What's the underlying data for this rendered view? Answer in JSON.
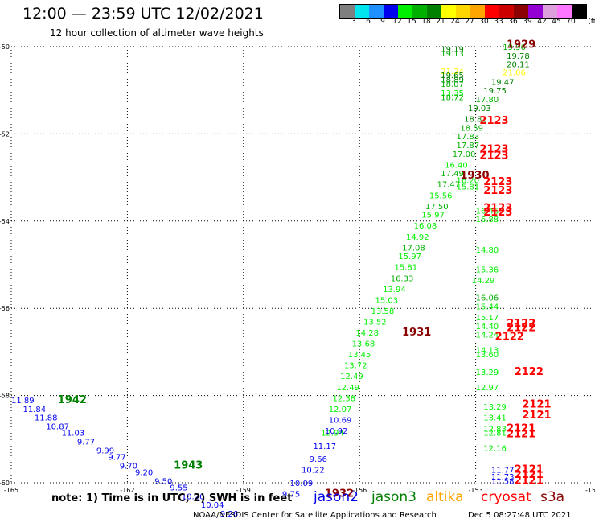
{
  "header": {
    "title": "12:00 — 23:59 UTC 12/02/2021",
    "subtitle": "12 hour collection of altimeter wave heights"
  },
  "legend": {
    "swatches": [
      {
        "color": "#7f7f7f",
        "label": "3"
      },
      {
        "color": "#00e5ee",
        "label": "6"
      },
      {
        "color": "#1e90ff",
        "label": "9"
      },
      {
        "color": "#0000ee",
        "label": "12"
      },
      {
        "color": "#00ee00",
        "label": "15"
      },
      {
        "color": "#00b000",
        "label": "18"
      },
      {
        "color": "#008000",
        "label": "21"
      },
      {
        "color": "#ffff00",
        "label": "24"
      },
      {
        "color": "#ffd700",
        "label": "27"
      },
      {
        "color": "#ffa500",
        "label": "30"
      },
      {
        "color": "#ff0000",
        "label": "33"
      },
      {
        "color": "#cd0000",
        "label": "36"
      },
      {
        "color": "#8b0000",
        "label": "39"
      },
      {
        "color": "#9400d3",
        "label": "42"
      },
      {
        "color": "#dda0dd",
        "label": "45"
      },
      {
        "color": "#ff77ff",
        "label": "70"
      },
      {
        "color": "#000000",
        "label": ""
      }
    ],
    "unit": "(ft)"
  },
  "axes": {
    "lat_labels": [
      "-50",
      "-52",
      "-54",
      "-56",
      "-58",
      "-60"
    ],
    "lon_labels": [
      "-165",
      "-162",
      "-159",
      "-156",
      "-153",
      "-15"
    ]
  },
  "points": [
    {
      "lon": -152.3,
      "lat": -50.0,
      "text": "19.96",
      "color": "#00b000"
    },
    {
      "lon": -152.2,
      "lat": -50.2,
      "text": "19.78",
      "color": "#008000"
    },
    {
      "lon": -152.2,
      "lat": -50.4,
      "text": "20.11",
      "color": "#008000"
    },
    {
      "lon": -152.3,
      "lat": -50.58,
      "text": "21.06",
      "color": "#ffff00"
    },
    {
      "lon": -152.6,
      "lat": -50.8,
      "text": "19.47",
      "color": "#008000"
    },
    {
      "lon": -152.8,
      "lat": -51.0,
      "text": "19.75",
      "color": "#008000"
    },
    {
      "lon": -153.0,
      "lat": -51.2,
      "text": "17.80",
      "color": "#00b000"
    },
    {
      "lon": -153.2,
      "lat": -51.4,
      "text": "19.03",
      "color": "#008000"
    },
    {
      "lon": -153.3,
      "lat": -51.65,
      "text": "18.82",
      "color": "#008000"
    },
    {
      "lon": -153.4,
      "lat": -51.85,
      "text": "18.59",
      "color": "#00b000"
    },
    {
      "lon": -153.5,
      "lat": -52.05,
      "text": "17.83",
      "color": "#00b000"
    },
    {
      "lon": -153.5,
      "lat": -52.25,
      "text": "17.87",
      "color": "#00b000"
    },
    {
      "lon": -153.6,
      "lat": -52.45,
      "text": "17.00",
      "color": "#00b000"
    },
    {
      "lon": -153.8,
      "lat": -52.7,
      "text": "16.40",
      "color": "#00ee00"
    },
    {
      "lon": -153.9,
      "lat": -52.9,
      "text": "17.49",
      "color": "#00b000"
    },
    {
      "lon": -153.5,
      "lat": -53.05,
      "text": "16.20",
      "color": "#00ee00"
    },
    {
      "lon": -154.0,
      "lat": -53.15,
      "text": "17.47",
      "color": "#00b000"
    },
    {
      "lon": -153.5,
      "lat": -53.2,
      "text": "15.81",
      "color": "#00ee00"
    },
    {
      "lon": -154.2,
      "lat": -53.4,
      "text": "15.56",
      "color": "#00ee00"
    },
    {
      "lon": -154.3,
      "lat": -53.65,
      "text": "17.50",
      "color": "#00b000"
    },
    {
      "lon": -153.0,
      "lat": -53.75,
      "text": "16.46",
      "color": "#00ee00"
    },
    {
      "lon": -154.4,
      "lat": -53.85,
      "text": "15.97",
      "color": "#00ee00"
    },
    {
      "lon": -153.0,
      "lat": -53.95,
      "text": "16.88",
      "color": "#00ee00"
    },
    {
      "lon": -154.6,
      "lat": -54.1,
      "text": "16.08",
      "color": "#00ee00"
    },
    {
      "lon": -154.8,
      "lat": -54.35,
      "text": "14.92",
      "color": "#00ee00"
    },
    {
      "lon": -154.9,
      "lat": -54.6,
      "text": "17.08",
      "color": "#00b000"
    },
    {
      "lon": -153.0,
      "lat": -54.65,
      "text": "14.80",
      "color": "#00ee00"
    },
    {
      "lon": -155.0,
      "lat": -54.8,
      "text": "15.97",
      "color": "#00ee00"
    },
    {
      "lon": -155.1,
      "lat": -55.05,
      "text": "15.81",
      "color": "#00ee00"
    },
    {
      "lon": -153.0,
      "lat": -55.1,
      "text": "15.36",
      "color": "#00ee00"
    },
    {
      "lon": -155.2,
      "lat": -55.3,
      "text": "16.33",
      "color": "#00b000"
    },
    {
      "lon": -153.1,
      "lat": -55.35,
      "text": "14.29",
      "color": "#00ee00"
    },
    {
      "lon": -155.4,
      "lat": -55.55,
      "text": "13.94",
      "color": "#00ee00"
    },
    {
      "lon": -155.6,
      "lat": -55.8,
      "text": "15.03",
      "color": "#00ee00"
    },
    {
      "lon": -153.0,
      "lat": -55.75,
      "text": "16.06",
      "color": "#00b000"
    },
    {
      "lon": -153.0,
      "lat": -55.95,
      "text": "15.44",
      "color": "#00ee00"
    },
    {
      "lon": -155.7,
      "lat": -56.05,
      "text": "13.58",
      "color": "#00ee00"
    },
    {
      "lon": -153.0,
      "lat": -56.2,
      "text": "15.17",
      "color": "#00ee00"
    },
    {
      "lon": -155.9,
      "lat": -56.3,
      "text": "13.52",
      "color": "#00ee00"
    },
    {
      "lon": -153.0,
      "lat": -56.4,
      "text": "14.40",
      "color": "#00ee00"
    },
    {
      "lon": -156.1,
      "lat": -56.55,
      "text": "14.28",
      "color": "#00ee00"
    },
    {
      "lon": -153.0,
      "lat": -56.6,
      "text": "14.24",
      "color": "#00ee00"
    },
    {
      "lon": -156.2,
      "lat": -56.8,
      "text": "13.68",
      "color": "#00ee00"
    },
    {
      "lon": -153.0,
      "lat": -56.95,
      "text": "14.13",
      "color": "#00ee00"
    },
    {
      "lon": -156.3,
      "lat": -57.05,
      "text": "13.45",
      "color": "#00ee00"
    },
    {
      "lon": -153.0,
      "lat": -57.05,
      "text": "13.60",
      "color": "#00ee00"
    },
    {
      "lon": -156.4,
      "lat": -57.3,
      "text": "13.72",
      "color": "#00ee00"
    },
    {
      "lon": -156.5,
      "lat": -57.55,
      "text": "12.49",
      "color": "#00ee00"
    },
    {
      "lon": -153.0,
      "lat": -57.45,
      "text": "13.29",
      "color": "#00ee00"
    },
    {
      "lon": -156.6,
      "lat": -57.8,
      "text": "12.49",
      "color": "#00ee00"
    },
    {
      "lon": -153.0,
      "lat": -57.8,
      "text": "12.97",
      "color": "#00ee00"
    },
    {
      "lon": -156.7,
      "lat": -58.05,
      "text": "12.38",
      "color": "#00ee00"
    },
    {
      "lon": -156.8,
      "lat": -58.3,
      "text": "12.07",
      "color": "#00ee00"
    },
    {
      "lon": -152.8,
      "lat": -58.25,
      "text": "13.29",
      "color": "#00ee00"
    },
    {
      "lon": -152.8,
      "lat": -58.5,
      "text": "13.41",
      "color": "#00ee00"
    },
    {
      "lon": -152.8,
      "lat": -58.75,
      "text": "12.83",
      "color": "#00ee00"
    },
    {
      "lon": -152.8,
      "lat": -58.85,
      "text": "12.81",
      "color": "#00ee00"
    },
    {
      "lon": -152.8,
      "lat": -59.2,
      "text": "12.16",
      "color": "#00ee00"
    },
    {
      "lon": -157.0,
      "lat": -58.85,
      "text": "12.94",
      "color": "#00ee00"
    },
    {
      "lon": -156.8,
      "lat": -58.55,
      "text": "10.69",
      "color": "#0000ee"
    },
    {
      "lon": -156.9,
      "lat": -58.8,
      "text": "10.92",
      "color": "#0000ee"
    },
    {
      "lon": -157.2,
      "lat": -59.15,
      "text": "11.17",
      "color": "#0000ee"
    },
    {
      "lon": -157.3,
      "lat": -59.45,
      "text": "9.66",
      "color": "#0000ee"
    },
    {
      "lon": -157.5,
      "lat": -59.7,
      "text": "10.22",
      "color": "#0000ee"
    },
    {
      "lon": -157.8,
      "lat": -60.0,
      "text": "10.09",
      "color": "#0000ee"
    },
    {
      "lon": -158.0,
      "lat": -60.25,
      "text": "9.75",
      "color": "#0000ee"
    },
    {
      "lon": -152.6,
      "lat": -59.7,
      "text": "11.77",
      "color": "#0000ee"
    },
    {
      "lon": -152.6,
      "lat": -59.85,
      "text": "11.73",
      "color": "#0000ee"
    },
    {
      "lon": -152.6,
      "lat": -59.95,
      "text": "11.58",
      "color": "#0000ee"
    },
    {
      "lon": -165.0,
      "lat": -58.1,
      "text": "11.89",
      "color": "#0000ee"
    },
    {
      "lon": -164.7,
      "lat": -58.3,
      "text": "11.84",
      "color": "#0000ee"
    },
    {
      "lon": -164.4,
      "lat": -58.5,
      "text": "11.88",
      "color": "#0000ee"
    },
    {
      "lon": -164.1,
      "lat": -58.7,
      "text": "10.87",
      "color": "#0000ee"
    },
    {
      "lon": -163.7,
      "lat": -58.85,
      "text": "11.03",
      "color": "#0000ee"
    },
    {
      "lon": -163.3,
      "lat": -59.05,
      "text": "9.77",
      "color": "#0000ee"
    },
    {
      "lon": -162.8,
      "lat": -59.25,
      "text": "9.99",
      "color": "#0000ee"
    },
    {
      "lon": -162.5,
      "lat": -59.4,
      "text": "9.77",
      "color": "#0000ee"
    },
    {
      "lon": -162.2,
      "lat": -59.6,
      "text": "9.70",
      "color": "#0000ee"
    },
    {
      "lon": -161.8,
      "lat": -59.75,
      "text": "9.20",
      "color": "#0000ee"
    },
    {
      "lon": -161.3,
      "lat": -59.95,
      "text": "9.50",
      "color": "#0000ee"
    },
    {
      "lon": -160.9,
      "lat": -60.1,
      "text": "9.55",
      "color": "#0000ee"
    },
    {
      "lon": -160.6,
      "lat": -60.3,
      "text": "10.26",
      "color": "#0000ee"
    },
    {
      "lon": -160.1,
      "lat": -60.5,
      "text": "10.04",
      "color": "#0000ee"
    },
    {
      "lon": -159.6,
      "lat": -60.7,
      "text": "9.26",
      "color": "#0000ee"
    }
  ],
  "track_top_cluster": [
    {
      "lon": -153.9,
      "lat": -50.05,
      "text": "19.19",
      "color": "#008000"
    },
    {
      "lon": -153.9,
      "lat": -50.15,
      "text": "19.13",
      "color": "#00b000"
    },
    {
      "lon": -153.9,
      "lat": -50.55,
      "text": "21.24",
      "color": "#ffff00"
    },
    {
      "lon": -153.9,
      "lat": -50.65,
      "text": "19.65",
      "color": "#008000"
    },
    {
      "lon": -153.9,
      "lat": -50.75,
      "text": "18.89",
      "color": "#008000"
    },
    {
      "lon": -153.9,
      "lat": -50.85,
      "text": "18.07",
      "color": "#00b000"
    },
    {
      "lon": -153.9,
      "lat": -51.05,
      "text": "13.35",
      "color": "#00ee00"
    },
    {
      "lon": -153.9,
      "lat": -51.15,
      "text": "18.72",
      "color": "#00b000"
    }
  ],
  "time_labels": [
    {
      "lon": -152.2,
      "lat": -49.95,
      "text": "1929",
      "color": "#8b0000"
    },
    {
      "lon": -152.9,
      "lat": -51.7,
      "text": "2123",
      "color": "#ff0000"
    },
    {
      "lon": -152.9,
      "lat": -52.35,
      "text": "2123",
      "color": "#ff0000"
    },
    {
      "lon": -152.9,
      "lat": -52.5,
      "text": "2123",
      "color": "#ff0000"
    },
    {
      "lon": -153.4,
      "lat": -52.95,
      "text": "1930",
      "color": "#8b0000"
    },
    {
      "lon": -152.8,
      "lat": -53.1,
      "text": "2123",
      "color": "#ff0000"
    },
    {
      "lon": -152.8,
      "lat": -53.3,
      "text": "2123",
      "color": "#ff0000"
    },
    {
      "lon": -152.8,
      "lat": -53.7,
      "text": "2123",
      "color": "#ff0000"
    },
    {
      "lon": -152.8,
      "lat": -53.8,
      "text": "2123",
      "color": "#ff0000"
    },
    {
      "lon": -154.9,
      "lat": -56.55,
      "text": "1931",
      "color": "#8b0000"
    },
    {
      "lon": -152.2,
      "lat": -56.35,
      "text": "2122",
      "color": "#ff0000"
    },
    {
      "lon": -152.2,
      "lat": -56.45,
      "text": "2122",
      "color": "#ff0000"
    },
    {
      "lon": -152.5,
      "lat": -56.65,
      "text": "2122",
      "color": "#ff0000"
    },
    {
      "lon": -152.0,
      "lat": -57.45,
      "text": "2122",
      "color": "#ff0000"
    },
    {
      "lon": -151.8,
      "lat": -58.2,
      "text": "2121",
      "color": "#ff0000"
    },
    {
      "lon": -151.8,
      "lat": -58.45,
      "text": "2121",
      "color": "#ff0000"
    },
    {
      "lon": -152.2,
      "lat": -58.75,
      "text": "2121",
      "color": "#ff0000"
    },
    {
      "lon": -152.2,
      "lat": -58.88,
      "text": "2121",
      "color": "#ff0000"
    },
    {
      "lon": -152.0,
      "lat": -59.7,
      "text": "2121",
      "color": "#ff0000"
    },
    {
      "lon": -152.0,
      "lat": -59.82,
      "text": "2121",
      "color": "#ff0000"
    },
    {
      "lon": -152.0,
      "lat": -59.95,
      "text": "2121",
      "color": "#ff0000"
    },
    {
      "lon": -163.8,
      "lat": -58.1,
      "text": "1942",
      "color": "#008000"
    },
    {
      "lon": -160.8,
      "lat": -59.6,
      "text": "1943",
      "color": "#008000"
    },
    {
      "lon": -156.9,
      "lat": -60.25,
      "text": "1932",
      "color": "#8b0000"
    }
  ],
  "footer": {
    "note": "note: 1) Time is in UTC; 2) SWH is in feet",
    "satellites": [
      {
        "name": "jason2",
        "color": "#0000ee"
      },
      {
        "name": "jason3",
        "color": "#008000"
      },
      {
        "name": "altika",
        "color": "#ffa500"
      },
      {
        "name": "cryosat",
        "color": "#ff0000"
      },
      {
        "name": "s3a",
        "color": "#8b0000"
      }
    ],
    "credit": "NOAA/NESDIS Center for Satellite Applications and Research",
    "timestamp": "Dec  5 08:27:48 UTC 2021"
  }
}
